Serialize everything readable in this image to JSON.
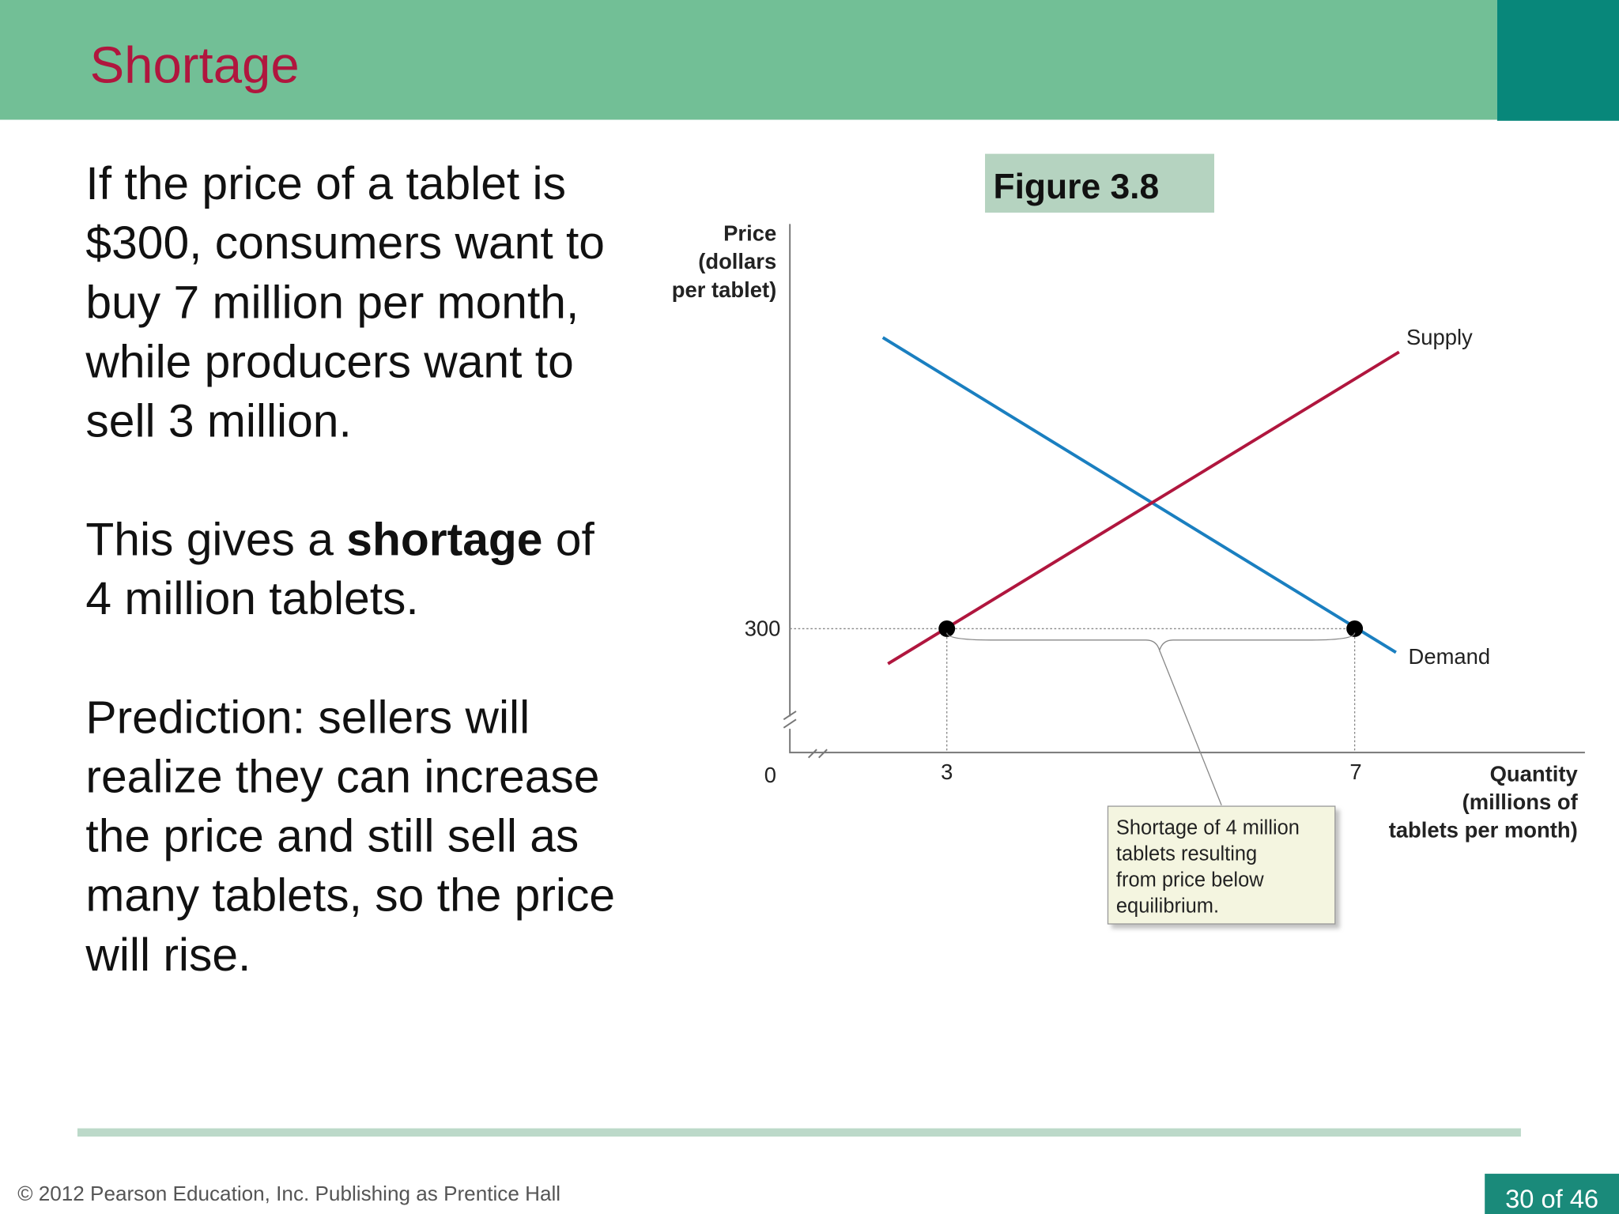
{
  "header": {
    "title": "Shortage"
  },
  "body": {
    "paragraph_1": [
      "If the price of a tablet is",
      "$300, consumers want to",
      "buy 7 million per month,",
      "while producers want to",
      "sell 3 million."
    ],
    "paragraph_2": {
      "before": "This gives a ",
      "bold": "shortage",
      "after": " of",
      "line_2": "4 million tablets."
    },
    "paragraph_3": [
      "Prediction: sellers will",
      "realize they can increase",
      "the price and still sell as",
      "many tablets, so the price",
      "will rise."
    ]
  },
  "figure": {
    "label": "Figure 3.8",
    "y_axis_label": [
      "Price",
      "(dollars",
      "per tablet)"
    ],
    "x_axis_label": [
      "Quantity",
      "(millions of",
      "tablets per month)"
    ],
    "origin": "0",
    "y_tick": "300",
    "x_ticks": [
      "3",
      "7"
    ],
    "supply_label": "Supply",
    "demand_label": "Demand",
    "callout": [
      "Shortage of 4 million",
      "tablets resulting",
      "from price below",
      "equilibrium."
    ]
  },
  "footer": {
    "copyright": "© 2012 Pearson Education, Inc. Publishing as Prentice Hall",
    "page": "30 of 46"
  }
}
